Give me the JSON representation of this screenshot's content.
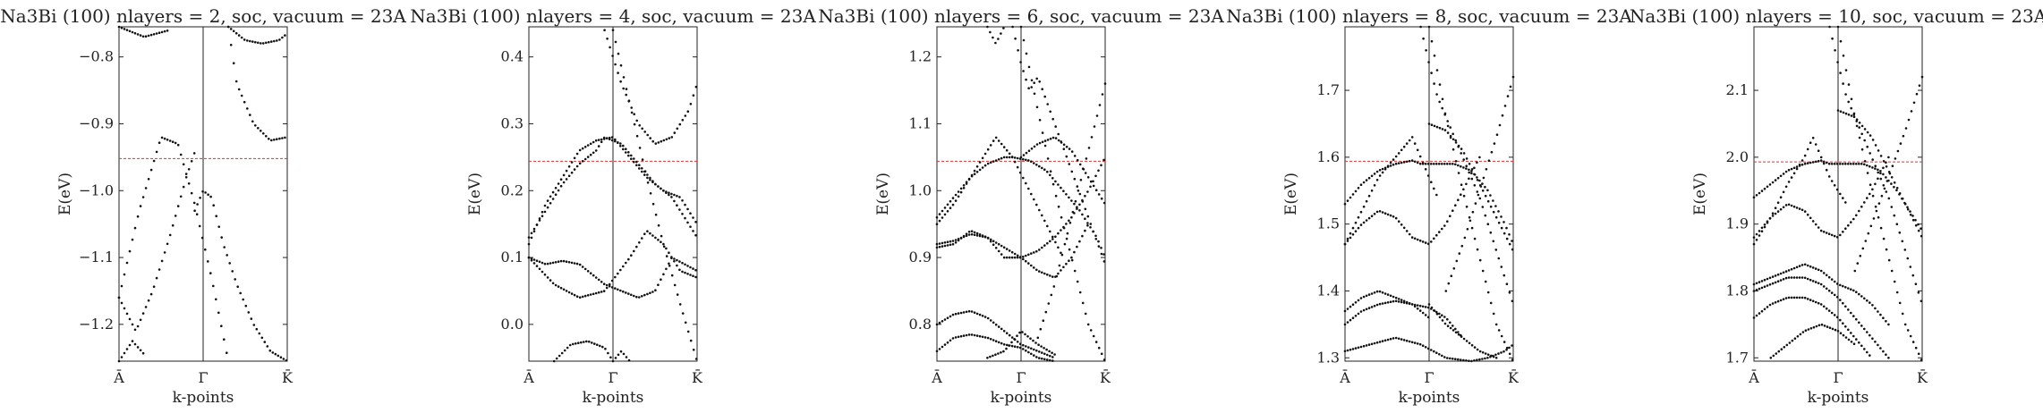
{
  "chart_data": [
    {
      "type": "scatter",
      "title": "Na3Bi (100) nlayers = 2, soc, vacuum = 23A",
      "xlabel": "k-points",
      "ylabel": "E(eV)",
      "xticks": [
        "Ā",
        "Γ̄",
        "K̄"
      ],
      "ylim": [
        -1.255,
        -0.755
      ],
      "yticks": [
        -0.8,
        -0.9,
        -1.0,
        -1.1,
        -1.2
      ],
      "ytick_labels": [
        "−0.8",
        "−0.9",
        "−1.0",
        "−1.1",
        "−1.2"
      ],
      "fermi_level": -0.952,
      "fermi_color": "#e03030",
      "bands": [
        {
          "k": [
            0.0,
            0.12,
            0.25,
            0.35,
            0.45,
            0.55,
            0.65
          ],
          "e": [
            -1.16,
            -1.03,
            -0.92,
            -0.93,
            -1.02,
            -1.13,
            -1.255
          ]
        },
        {
          "k": [
            0.0,
            0.1,
            0.2,
            0.3,
            0.4,
            0.46
          ],
          "e": [
            -1.16,
            -1.21,
            -1.15,
            -1.07,
            -0.98,
            -0.935
          ]
        },
        {
          "k": [
            0.45,
            0.5,
            0.55,
            0.62,
            0.7,
            0.8,
            0.9,
            1.0
          ],
          "e": [
            -1.03,
            -1.0,
            -1.01,
            -1.08,
            -1.14,
            -1.2,
            -1.24,
            -1.255
          ]
        },
        {
          "k": [
            0.0,
            0.08,
            0.15
          ],
          "e": [
            -1.255,
            -1.225,
            -1.245
          ]
        },
        {
          "k": [
            0.65,
            0.7,
            0.8,
            0.9,
            1.0
          ],
          "e": [
            -0.755,
            -0.84,
            -0.9,
            -0.925,
            -0.92
          ]
        },
        {
          "k": [
            0.65,
            0.75,
            0.85,
            0.95,
            1.0
          ],
          "e": [
            -0.755,
            -0.775,
            -0.78,
            -0.775,
            -0.765
          ]
        },
        {
          "k": [
            0.0,
            0.15,
            0.3
          ],
          "e": [
            -0.755,
            -0.77,
            -0.76
          ]
        }
      ]
    },
    {
      "type": "scatter",
      "title": "Na3Bi (100) nlayers = 4, soc, vacuum = 23A",
      "xlabel": "k-points",
      "ylabel": "E(eV)",
      "xticks": [
        "Ā",
        "Γ̄",
        "K̄"
      ],
      "ylim": [
        -0.055,
        0.445
      ],
      "yticks": [
        0.4,
        0.3,
        0.2,
        0.1,
        0.0
      ],
      "ytick_labels": [
        "0.4",
        "0.3",
        "0.2",
        "0.1",
        "0.0"
      ],
      "fermi_level": 0.244,
      "fermi_color": "#e03030",
      "bands": [
        {
          "k": [
            0.0,
            0.1,
            0.2,
            0.3,
            0.4,
            0.45,
            0.55,
            0.65,
            0.75,
            0.85,
            1.0
          ],
          "e": [
            0.13,
            0.17,
            0.21,
            0.24,
            0.26,
            0.28,
            0.27,
            0.24,
            0.21,
            0.19,
            0.13
          ]
        },
        {
          "k": [
            0.0,
            0.1,
            0.2,
            0.3,
            0.4,
            0.5,
            0.6,
            0.7,
            0.8,
            0.9,
            1.0
          ],
          "e": [
            0.12,
            0.18,
            0.22,
            0.26,
            0.275,
            0.28,
            0.25,
            0.22,
            0.2,
            0.19,
            0.15
          ]
        },
        {
          "k": [
            0.0,
            0.1,
            0.2,
            0.3,
            0.4,
            0.45,
            0.55,
            0.65,
            0.75,
            0.85,
            1.0
          ],
          "e": [
            0.1,
            0.09,
            0.095,
            0.09,
            0.07,
            0.06,
            0.05,
            0.04,
            0.05,
            0.1,
            0.08
          ]
        },
        {
          "k": [
            0.0,
            0.15,
            0.3,
            0.45,
            0.6,
            0.7,
            0.8,
            0.9,
            1.0
          ],
          "e": [
            0.1,
            0.06,
            0.04,
            0.05,
            0.1,
            0.14,
            0.12,
            0.08,
            0.07
          ]
        },
        {
          "k": [
            0.45,
            0.55,
            0.65,
            0.75,
            0.85,
            0.95,
            1.0
          ],
          "e": [
            0.44,
            0.36,
            0.3,
            0.27,
            0.28,
            0.32,
            0.36
          ]
        },
        {
          "k": [
            0.5,
            0.6,
            0.7,
            0.8,
            0.9,
            1.0
          ],
          "e": [
            0.44,
            0.33,
            0.22,
            0.12,
            0.03,
            -0.055
          ]
        },
        {
          "k": [
            0.15,
            0.25,
            0.35,
            0.45,
            0.5
          ],
          "e": [
            -0.055,
            -0.03,
            -0.025,
            -0.035,
            -0.055
          ]
        },
        {
          "k": [
            0.5,
            0.55,
            0.6
          ],
          "e": [
            -0.055,
            -0.04,
            -0.055
          ]
        }
      ]
    },
    {
      "type": "scatter",
      "title": "Na3Bi (100) nlayers = 6, soc, vacuum = 23A",
      "xlabel": "k-points",
      "ylabel": "E(eV)",
      "xticks": [
        "Ā",
        "Γ̄",
        "K̄"
      ],
      "ylim": [
        0.745,
        1.245
      ],
      "yticks": [
        1.2,
        1.1,
        1.0,
        0.9,
        0.8
      ],
      "ytick_labels": [
        "1.2",
        "1.1",
        "1.0",
        "0.9",
        "0.8"
      ],
      "fermi_level": 1.044,
      "fermi_color": "#e03030",
      "bands": [
        {
          "k": [
            0.0,
            0.1,
            0.2,
            0.3,
            0.4,
            0.45,
            0.55,
            0.65,
            0.75,
            0.85,
            0.95,
            1.0
          ],
          "e": [
            0.96,
            0.99,
            1.02,
            1.04,
            1.05,
            1.05,
            1.045,
            1.03,
            1.0,
            0.97,
            0.93,
            0.9
          ]
        },
        {
          "k": [
            0.0,
            0.1,
            0.2,
            0.3,
            0.35,
            0.45,
            0.55,
            0.65,
            0.75
          ],
          "e": [
            0.95,
            0.98,
            1.02,
            1.06,
            1.08,
            1.05,
            1.0,
            0.95,
            0.9
          ]
        },
        {
          "k": [
            0.0,
            0.1,
            0.2,
            0.3,
            0.4,
            0.5,
            0.6,
            0.7,
            0.8,
            0.9
          ],
          "e": [
            0.92,
            0.925,
            0.935,
            0.93,
            0.915,
            0.9,
            0.88,
            0.87,
            0.9,
            0.95
          ]
        },
        {
          "k": [
            0.0,
            0.1,
            0.2,
            0.3,
            0.4,
            0.5,
            0.6,
            0.7,
            0.8,
            0.9,
            1.0
          ],
          "e": [
            0.915,
            0.92,
            0.94,
            0.93,
            0.9,
            0.9,
            0.91,
            0.93,
            0.96,
            1.0,
            1.05
          ]
        },
        {
          "k": [
            0.45,
            0.5,
            0.55,
            0.6,
            0.7,
            0.8,
            0.9,
            1.0
          ],
          "e": [
            1.245,
            1.19,
            1.15,
            1.17,
            1.1,
            1.03,
            0.96,
            0.89
          ]
        },
        {
          "k": [
            0.5,
            0.6,
            0.7,
            0.8,
            0.9,
            1.0
          ],
          "e": [
            1.245,
            1.12,
            1.0,
            0.9,
            0.8,
            0.745
          ]
        },
        {
          "k": [
            0.6,
            0.7,
            0.8,
            0.9,
            1.0
          ],
          "e": [
            0.78,
            0.86,
            0.96,
            1.06,
            1.16
          ]
        },
        {
          "k": [
            0.5,
            0.6,
            0.7,
            0.8,
            0.9,
            1.0
          ],
          "e": [
            1.05,
            1.07,
            1.08,
            1.06,
            1.02,
            0.98
          ]
        },
        {
          "k": [
            0.0,
            0.1,
            0.2,
            0.3,
            0.4,
            0.5,
            0.6,
            0.7
          ],
          "e": [
            0.8,
            0.815,
            0.82,
            0.81,
            0.79,
            0.77,
            0.76,
            0.75
          ]
        },
        {
          "k": [
            0.0,
            0.1,
            0.2,
            0.3,
            0.4,
            0.5,
            0.6,
            0.7
          ],
          "e": [
            0.76,
            0.78,
            0.785,
            0.78,
            0.77,
            0.765,
            0.75,
            0.745
          ]
        },
        {
          "k": [
            0.3,
            0.4,
            0.5,
            0.6,
            0.7
          ],
          "e": [
            0.75,
            0.76,
            0.79,
            0.77,
            0.755
          ]
        },
        {
          "k": [
            0.3,
            0.35,
            0.4
          ],
          "e": [
            1.245,
            1.22,
            1.245
          ]
        }
      ]
    },
    {
      "type": "scatter",
      "title": "Na3Bi (100) nlayers = 8, soc, vacuum = 23A",
      "xlabel": "k-points",
      "ylabel": "E(eV)",
      "xticks": [
        "Ā",
        "Γ̄",
        "K̄"
      ],
      "ylim": [
        1.295,
        1.795
      ],
      "yticks": [
        1.7,
        1.6,
        1.5,
        1.4,
        1.3
      ],
      "ytick_labels": [
        "1.7",
        "1.6",
        "1.5",
        "1.4",
        "1.3"
      ],
      "fermi_level": 1.594,
      "fermi_color": "#e03030",
      "bands": [
        {
          "k": [
            0.0,
            0.1,
            0.2,
            0.3,
            0.4,
            0.45,
            0.55,
            0.65,
            0.75,
            0.85,
            0.95,
            1.0
          ],
          "e": [
            1.53,
            1.56,
            1.58,
            1.59,
            1.595,
            1.59,
            1.59,
            1.59,
            1.58,
            1.55,
            1.5,
            1.47
          ]
        },
        {
          "k": [
            0.0,
            0.1,
            0.2,
            0.3,
            0.4,
            0.5,
            0.55
          ],
          "e": [
            1.47,
            1.52,
            1.57,
            1.6,
            1.63,
            1.57,
            1.54
          ]
        },
        {
          "k": [
            0.0,
            0.1,
            0.2,
            0.3,
            0.4,
            0.5,
            0.6,
            0.7,
            0.8
          ],
          "e": [
            1.47,
            1.5,
            1.52,
            1.51,
            1.48,
            1.47,
            1.5,
            1.55,
            1.6
          ]
        },
        {
          "k": [
            0.0,
            0.1,
            0.2,
            0.3,
            0.4,
            0.5
          ],
          "e": [
            1.37,
            1.39,
            1.4,
            1.39,
            1.38,
            1.36
          ]
        },
        {
          "k": [
            0.0,
            0.1,
            0.2,
            0.3,
            0.4,
            0.5,
            0.6,
            0.7
          ],
          "e": [
            1.35,
            1.37,
            1.38,
            1.385,
            1.38,
            1.375,
            1.36,
            1.33
          ]
        },
        {
          "k": [
            0.0,
            0.15,
            0.3,
            0.45,
            0.6,
            0.75,
            0.85,
            0.95,
            1.0
          ],
          "e": [
            1.31,
            1.32,
            1.33,
            1.32,
            1.3,
            1.295,
            1.3,
            1.31,
            1.32
          ]
        },
        {
          "k": [
            0.45,
            0.5,
            0.55,
            0.6,
            0.7,
            0.8,
            0.9,
            1.0
          ],
          "e": [
            1.795,
            1.74,
            1.69,
            1.66,
            1.6,
            1.54,
            1.46,
            1.38
          ]
        },
        {
          "k": [
            0.5,
            0.6,
            0.7,
            0.8,
            0.9,
            1.0
          ],
          "e": [
            1.795,
            1.66,
            1.55,
            1.45,
            1.35,
            1.295
          ]
        },
        {
          "k": [
            0.6,
            0.7,
            0.8,
            0.9,
            1.0
          ],
          "e": [
            1.4,
            1.47,
            1.55,
            1.63,
            1.72
          ]
        },
        {
          "k": [
            0.5,
            0.6,
            0.7,
            0.8,
            0.9,
            1.0
          ],
          "e": [
            1.65,
            1.64,
            1.61,
            1.56,
            1.51,
            1.46
          ]
        },
        {
          "k": [
            0.5,
            0.6,
            0.7,
            0.8,
            0.9
          ],
          "e": [
            1.38,
            1.35,
            1.33,
            1.31,
            1.3
          ]
        }
      ]
    },
    {
      "type": "scatter",
      "title": "Na3Bi (100) nlayers = 10, soc, vacuum = 23A",
      "xlabel": "k-points",
      "ylabel": "E(eV)",
      "xticks": [
        "Ā",
        "Γ̄",
        "K̄"
      ],
      "ylim": [
        1.695,
        2.195
      ],
      "yticks": [
        2.1,
        2.0,
        1.9,
        1.8,
        1.7
      ],
      "ytick_labels": [
        "2.1",
        "2.0",
        "1.9",
        "1.8",
        "1.7"
      ],
      "fermi_level": 1.993,
      "fermi_color": "#e03030",
      "bands": [
        {
          "k": [
            0.0,
            0.1,
            0.2,
            0.3,
            0.4,
            0.45,
            0.55,
            0.65,
            0.75,
            0.85,
            0.95,
            1.0
          ],
          "e": [
            1.94,
            1.96,
            1.98,
            1.99,
            1.995,
            1.99,
            1.99,
            1.99,
            1.98,
            1.95,
            1.91,
            1.89
          ]
        },
        {
          "k": [
            0.0,
            0.1,
            0.2,
            0.3,
            0.35,
            0.45,
            0.55
          ],
          "e": [
            1.87,
            1.91,
            1.96,
            2.0,
            2.03,
            1.97,
            1.93
          ]
        },
        {
          "k": [
            0.0,
            0.1,
            0.2,
            0.3,
            0.4,
            0.5,
            0.6,
            0.7,
            0.8
          ],
          "e": [
            1.88,
            1.91,
            1.93,
            1.92,
            1.89,
            1.88,
            1.91,
            1.95,
            2.0
          ]
        },
        {
          "k": [
            0.0,
            0.1,
            0.2,
            0.3,
            0.4,
            0.5,
            0.6,
            0.7,
            0.8
          ],
          "e": [
            1.81,
            1.82,
            1.83,
            1.84,
            1.83,
            1.81,
            1.8,
            1.78,
            1.75
          ]
        },
        {
          "k": [
            0.0,
            0.1,
            0.2,
            0.3,
            0.4,
            0.5,
            0.6,
            0.7,
            0.8
          ],
          "e": [
            1.8,
            1.81,
            1.82,
            1.82,
            1.81,
            1.79,
            1.76,
            1.73,
            1.7
          ]
        },
        {
          "k": [
            0.0,
            0.1,
            0.2,
            0.3,
            0.4,
            0.5,
            0.6,
            0.7
          ],
          "e": [
            1.76,
            1.78,
            1.79,
            1.79,
            1.78,
            1.76,
            1.73,
            1.7
          ]
        },
        {
          "k": [
            0.1,
            0.2,
            0.3,
            0.4,
            0.5,
            0.6
          ],
          "e": [
            1.7,
            1.72,
            1.74,
            1.75,
            1.74,
            1.72
          ]
        },
        {
          "k": [
            0.45,
            0.5,
            0.55,
            0.6,
            0.7,
            0.8,
            0.9,
            1.0
          ],
          "e": [
            2.195,
            2.14,
            2.09,
            2.06,
            2.0,
            1.94,
            1.86,
            1.78
          ]
        },
        {
          "k": [
            0.5,
            0.6,
            0.7,
            0.8,
            0.9,
            1.0
          ],
          "e": [
            2.195,
            2.06,
            1.95,
            1.85,
            1.75,
            1.695
          ]
        },
        {
          "k": [
            0.6,
            0.7,
            0.8,
            0.9,
            1.0
          ],
          "e": [
            1.83,
            1.9,
            1.97,
            2.04,
            2.12
          ]
        },
        {
          "k": [
            0.5,
            0.6,
            0.7,
            0.8,
            0.9,
            1.0
          ],
          "e": [
            2.07,
            2.06,
            2.03,
            1.98,
            1.93,
            1.88
          ]
        }
      ]
    }
  ]
}
